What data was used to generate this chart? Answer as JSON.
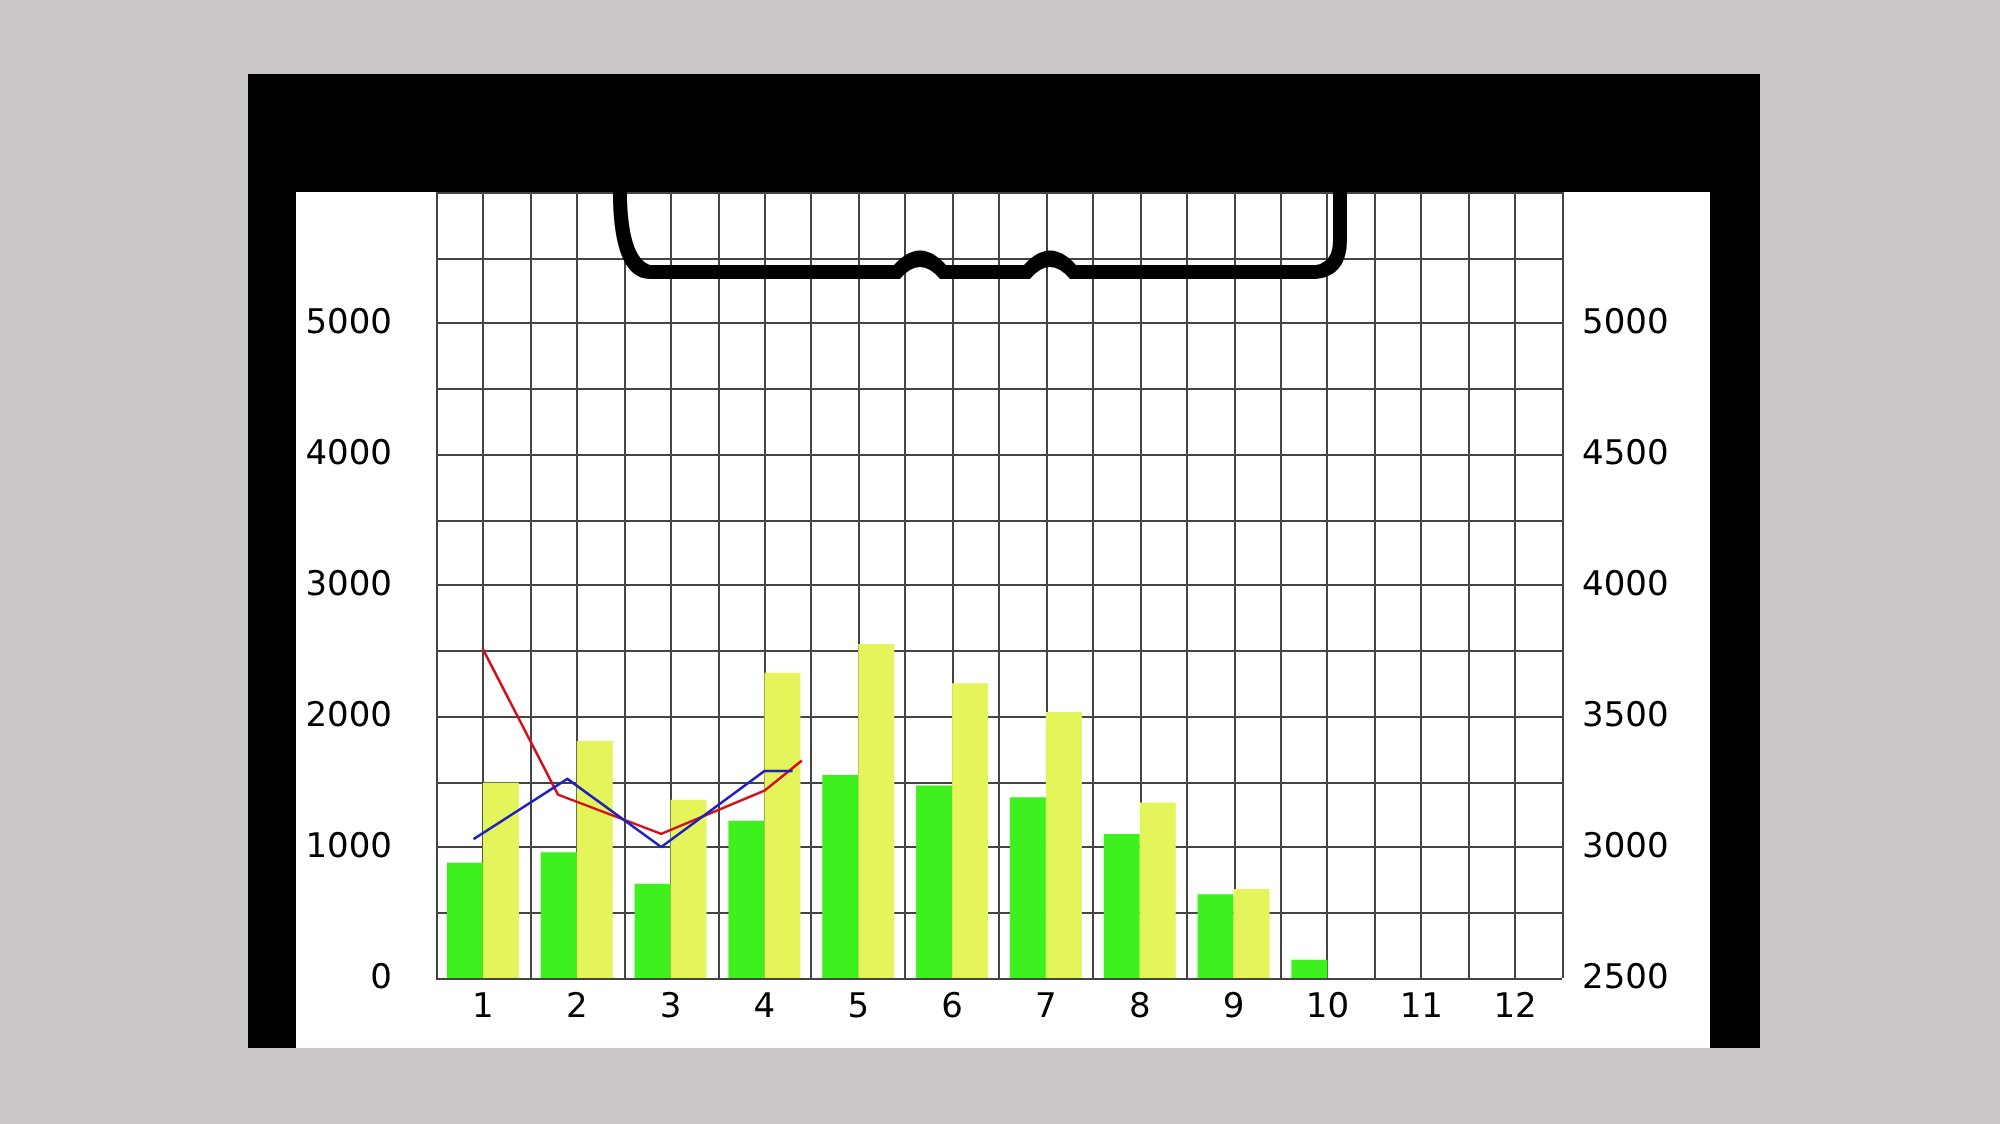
{
  "chart_data": {
    "type": "bar",
    "x": [
      1,
      2,
      3,
      4,
      5,
      6,
      7,
      8,
      9,
      10
    ],
    "xlim": [
      0.5,
      12.5
    ],
    "xticks": [
      {
        "value": 0.5,
        "label": null
      },
      1,
      {
        "value": 1.5,
        "label": null
      },
      2,
      {
        "value": 2.5,
        "label": null
      },
      3,
      {
        "value": 3.5,
        "label": null
      },
      4,
      {
        "value": 4.5,
        "label": null
      },
      5,
      {
        "value": 5.5,
        "label": null
      },
      6,
      {
        "value": 6.5,
        "label": null
      },
      7,
      {
        "value": 7.5,
        "label": null
      },
      8,
      {
        "value": 8.5,
        "label": null
      },
      9,
      {
        "value": 9.5,
        "label": null
      },
      10,
      {
        "value": 10.5,
        "label": null
      },
      11,
      {
        "value": 11.5,
        "label": null
      },
      12,
      {
        "value": 12.5,
        "label": null
      }
    ],
    "ylim": [
      0,
      6000
    ],
    "yticks": [
      0,
      {
        "value": 500,
        "label": null
      },
      1000,
      {
        "value": 1500,
        "label": null
      },
      2000,
      {
        "value": 2500,
        "label": null
      },
      3000,
      {
        "value": 3500,
        "label": null
      },
      4000,
      {
        "value": 4500,
        "label": null
      },
      5000,
      {
        "value": 5500,
        "label": null
      },
      {
        "value": 6000,
        "label": null
      }
    ],
    "y2lim": [
      2500,
      5500
    ],
    "y2ticks": [
      2500,
      3000,
      3500,
      4000,
      4500,
      5000,
      {
        "value": 5500,
        "label": null
      }
    ],
    "grid": true,
    "marker": "none",
    "series": [
      {
        "color": "#3ef01e",
        "values": [
          880,
          960,
          720,
          1200,
          1550,
          1470,
          1380,
          1100,
          640,
          140
        ]
      },
      {
        "color": "#e4f55c",
        "values": [
          1490,
          1810,
          1360,
          2330,
          2550,
          2250,
          2030,
          1340,
          680,
          null
        ]
      },
      {
        "type": "line",
        "axis": "y2",
        "color": "#d0101a",
        "x": [
          1,
          1.8,
          2.9,
          4,
          4.4
        ],
        "values": [
          3755,
          3200,
          3050,
          3215,
          3330
        ]
      },
      {
        "type": "line",
        "axis": "y2",
        "color": "#2020c0",
        "x": [
          0.9,
          1.9,
          2.9,
          4,
          4.3
        ],
        "values": [
          3030,
          3260,
          3000,
          3290,
          3290
        ]
      }
    ]
  }
}
